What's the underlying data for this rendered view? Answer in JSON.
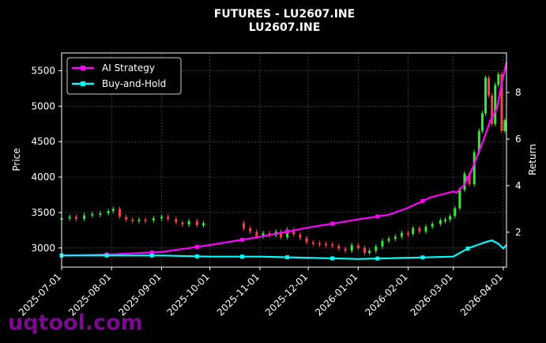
{
  "chart_data": {
    "type": "line",
    "title": "FUTURES - LU2607.INE",
    "subtitle": "LU2607.INE",
    "ylabel_left": "Price",
    "ylabel_right": "Return",
    "xlim": [
      "2025-07-01",
      "2026-04-03"
    ],
    "ylim_left": [
      2730,
      5750
    ],
    "ylim_right": [
      0.5,
      9.7
    ],
    "x_ticks": [
      "2025-07-01",
      "2025-08-01",
      "2025-09-01",
      "2025-10-01",
      "2025-11-01",
      "2025-12-01",
      "2026-01-01",
      "2026-02-01",
      "2026-03-01",
      "2026-04-01"
    ],
    "y_ticks_left": [
      "3000",
      "3500",
      "4000",
      "4500",
      "5000",
      "5500"
    ],
    "y_ticks_right": [
      "2",
      "4",
      "6",
      "8"
    ],
    "grid": true,
    "legend_position": "top-left",
    "candles": {
      "up_color": "#39e639",
      "down_color": "#ef4444",
      "points": [
        [
          "2025-07-01",
          3420
        ],
        [
          "2025-07-06",
          3440
        ],
        [
          "2025-07-10",
          3410
        ],
        [
          "2025-07-15",
          3460
        ],
        [
          "2025-07-20",
          3480
        ],
        [
          "2025-07-25",
          3490
        ],
        [
          "2025-07-30",
          3520
        ],
        [
          "2025-08-02",
          3550
        ],
        [
          "2025-08-06",
          3440
        ],
        [
          "2025-08-10",
          3400
        ],
        [
          "2025-08-14",
          3390
        ],
        [
          "2025-08-18",
          3400
        ],
        [
          "2025-08-22",
          3390
        ],
        [
          "2025-08-27",
          3420
        ],
        [
          "2025-09-01",
          3440
        ],
        [
          "2025-09-05",
          3410
        ],
        [
          "2025-09-10",
          3360
        ],
        [
          "2025-09-14",
          3330
        ],
        [
          "2025-09-18",
          3380
        ],
        [
          "2025-09-23",
          3320
        ],
        [
          "2025-09-27",
          3350
        ],
        [
          "2025-10-22",
          3280
        ],
        [
          "2025-10-26",
          3230
        ],
        [
          "2025-10-30",
          3160
        ],
        [
          "2025-11-03",
          3210
        ],
        [
          "2025-11-07",
          3180
        ],
        [
          "2025-11-11",
          3230
        ],
        [
          "2025-11-14",
          3150
        ],
        [
          "2025-11-18",
          3260
        ],
        [
          "2025-11-22",
          3190
        ],
        [
          "2025-11-26",
          3140
        ],
        [
          "2025-11-30",
          3080
        ],
        [
          "2025-12-04",
          3070
        ],
        [
          "2025-12-08",
          3060
        ],
        [
          "2025-12-12",
          3050
        ],
        [
          "2025-12-16",
          3030
        ],
        [
          "2025-12-20",
          2990
        ],
        [
          "2025-12-24",
          2960
        ],
        [
          "2025-12-28",
          3040
        ],
        [
          "2026-01-01",
          3000
        ],
        [
          "2026-01-05",
          2930
        ],
        [
          "2026-01-08",
          2960
        ],
        [
          "2026-01-12",
          3020
        ],
        [
          "2026-01-16",
          3100
        ],
        [
          "2026-01-20",
          3130
        ],
        [
          "2026-01-24",
          3160
        ],
        [
          "2026-01-28",
          3210
        ],
        [
          "2026-02-01",
          3200
        ],
        [
          "2026-02-04",
          3280
        ],
        [
          "2026-02-08",
          3230
        ],
        [
          "2026-02-12",
          3300
        ],
        [
          "2026-02-16",
          3340
        ],
        [
          "2026-02-21",
          3390
        ],
        [
          "2026-02-24",
          3400
        ],
        [
          "2026-02-27",
          3450
        ],
        [
          "2026-03-02",
          3560
        ],
        [
          "2026-03-05",
          3820
        ],
        [
          "2026-03-08",
          4050
        ],
        [
          "2026-03-11",
          3900
        ],
        [
          "2026-03-14",
          4350
        ],
        [
          "2026-03-17",
          4650
        ],
        [
          "2026-03-19",
          4900
        ],
        [
          "2026-03-21",
          5400
        ],
        [
          "2026-03-23",
          5150
        ],
        [
          "2026-03-25",
          4750
        ],
        [
          "2026-03-27",
          5300
        ],
        [
          "2026-03-29",
          5450
        ],
        [
          "2026-03-31",
          4650
        ],
        [
          "2026-04-02",
          4800
        ]
      ]
    },
    "series": [
      {
        "name": "AI Strategy",
        "axis": "right",
        "color": "#ff00ff",
        "x": [
          "2025-07-01",
          "2025-08-01",
          "2025-09-01",
          "2025-10-01",
          "2025-11-01",
          "2025-12-01",
          "2026-01-01",
          "2026-01-20",
          "2026-02-01",
          "2026-02-15",
          "2026-03-01",
          "2026-03-03",
          "2026-03-08",
          "2026-03-12",
          "2026-03-16",
          "2026-03-20",
          "2026-03-24",
          "2026-03-28",
          "2026-03-31",
          "2026-04-03"
        ],
        "values": [
          1.0,
          1.05,
          1.15,
          1.45,
          1.8,
          2.2,
          2.55,
          2.75,
          3.05,
          3.5,
          3.75,
          3.7,
          4.05,
          4.6,
          5.3,
          6.0,
          6.8,
          7.3,
          8.4,
          9.3
        ]
      },
      {
        "name": "Buy-and-Hold",
        "axis": "right",
        "color": "#00ffff",
        "x": [
          "2025-07-01",
          "2025-08-01",
          "2025-09-01",
          "2025-10-01",
          "2025-11-01",
          "2025-12-01",
          "2026-01-01",
          "2026-02-01",
          "2026-03-01",
          "2026-03-10",
          "2026-03-20",
          "2026-03-25",
          "2026-03-29",
          "2026-04-01",
          "2026-04-03"
        ],
        "values": [
          1.0,
          1.0,
          1.0,
          0.95,
          0.95,
          0.9,
          0.85,
          0.9,
          0.95,
          1.3,
          1.55,
          1.65,
          1.5,
          1.3,
          1.45
        ]
      }
    ]
  },
  "watermark": "uqtool.com"
}
